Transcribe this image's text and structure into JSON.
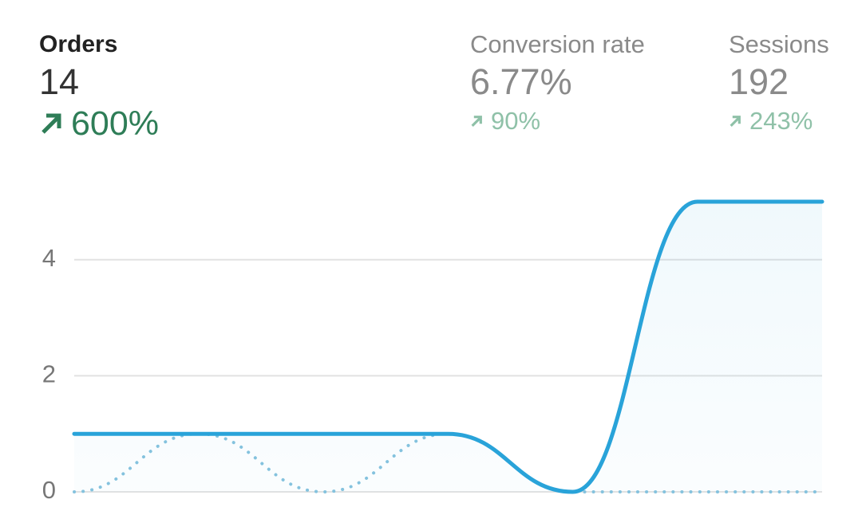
{
  "metrics": [
    {
      "label": "Orders",
      "value": "14",
      "change": "600%"
    },
    {
      "label": "Conversion rate",
      "value": "6.77%",
      "change": "90%"
    },
    {
      "label": "Sessions",
      "value": "192",
      "change": "243%"
    }
  ],
  "chart_data": {
    "type": "line",
    "categories": [
      null,
      null,
      null,
      null,
      null,
      null,
      null
    ],
    "series": [
      {
        "color": "#29a3d9",
        "style": "solid",
        "area": true,
        "values": [
          1,
          1,
          1,
          1,
          0,
          5,
          5
        ]
      },
      {
        "color": "#86c3de",
        "style": "dotted",
        "values": [
          0,
          1,
          0,
          1,
          0,
          0,
          0
        ]
      }
    ],
    "ylim": [
      0,
      5
    ],
    "yticks": [
      0,
      2,
      4
    ],
    "grid": true
  }
}
